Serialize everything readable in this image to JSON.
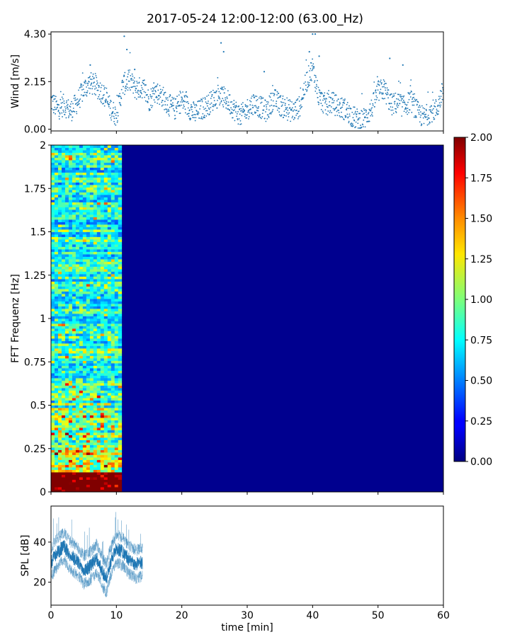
{
  "figure": {
    "title": "2017-05-24 12:00-12:00 (63.00_Hz)"
  },
  "chart_data": [
    {
      "type": "scatter",
      "name": "wind-panel",
      "xlabel": "",
      "ylabel": "Wind [m/s]",
      "xlim": [
        0,
        60
      ],
      "ylim": [
        -0.08,
        4.4
      ],
      "ytick_labels": [
        "0.00",
        "2.15",
        "4.30"
      ],
      "ytick_values": [
        0,
        2.15,
        4.3
      ],
      "xtick_values": [
        0,
        10,
        20,
        30,
        40,
        50,
        60
      ],
      "color": "#1f77b4",
      "profile": [
        [
          0,
          1.3
        ],
        [
          1,
          0.9
        ],
        [
          2,
          1.1
        ],
        [
          3,
          0.8
        ],
        [
          4,
          1.2
        ],
        [
          5,
          1.8
        ],
        [
          6,
          2.1
        ],
        [
          7,
          1.9
        ],
        [
          8,
          1.6
        ],
        [
          9,
          1.0
        ],
        [
          10,
          0.6
        ],
        [
          11,
          2.0
        ],
        [
          12,
          2.2
        ],
        [
          13,
          1.8
        ],
        [
          14,
          1.9
        ],
        [
          15,
          1.3
        ],
        [
          16,
          1.7
        ],
        [
          17,
          1.5
        ],
        [
          18,
          1.1
        ],
        [
          19,
          0.9
        ],
        [
          20,
          1.3
        ],
        [
          21,
          1.0
        ],
        [
          22,
          0.7
        ],
        [
          23,
          0.9
        ],
        [
          24,
          1.1
        ],
        [
          25,
          1.4
        ],
        [
          26,
          1.5
        ],
        [
          27,
          1.3
        ],
        [
          28,
          0.9
        ],
        [
          29,
          0.6
        ],
        [
          30,
          0.9
        ],
        [
          31,
          1.2
        ],
        [
          32,
          1.0
        ],
        [
          33,
          0.8
        ],
        [
          34,
          1.4
        ],
        [
          35,
          1.1
        ],
        [
          36,
          0.9
        ],
        [
          37,
          0.8
        ],
        [
          38,
          1.0
        ],
        [
          39,
          2.1
        ],
        [
          40,
          2.8
        ],
        [
          41,
          1.4
        ],
        [
          42,
          1.1
        ],
        [
          43,
          1.2
        ],
        [
          44,
          1.0
        ],
        [
          45,
          0.9
        ],
        [
          46,
          0.6
        ],
        [
          47,
          0.4
        ],
        [
          48,
          0.5
        ],
        [
          49,
          0.9
        ],
        [
          50,
          1.7
        ],
        [
          51,
          1.8
        ],
        [
          52,
          1.1
        ],
        [
          53,
          1.2
        ],
        [
          54,
          1.0
        ],
        [
          55,
          1.3
        ],
        [
          56,
          0.8
        ],
        [
          57,
          0.5
        ],
        [
          58,
          0.8
        ],
        [
          59,
          0.9
        ],
        [
          60,
          1.8
        ]
      ],
      "peaks": [
        [
          11.2,
          4.2
        ],
        [
          11.6,
          3.6
        ],
        [
          12.8,
          2.7
        ],
        [
          26.0,
          3.9
        ],
        [
          26.4,
          3.5
        ],
        [
          32.6,
          2.6
        ],
        [
          39.5,
          3.5
        ],
        [
          40.0,
          4.3
        ],
        [
          40.4,
          4.3
        ],
        [
          41.0,
          3.3
        ],
        [
          51.8,
          3.2
        ],
        [
          53.8,
          2.9
        ],
        [
          6.0,
          2.9
        ]
      ]
    },
    {
      "type": "heatmap",
      "name": "fft-spectrogram",
      "xlabel": "",
      "ylabel": "FFT Frequenz [Hz]",
      "xlim": [
        0,
        60
      ],
      "ylim": [
        0,
        2
      ],
      "ytick_labels": [
        "0",
        "0.25",
        "0.5",
        "0.75",
        "1",
        "1.25",
        "1.5",
        "1.75",
        "2"
      ],
      "ytick_values": [
        0,
        0.25,
        0.5,
        0.75,
        1,
        1.25,
        1.5,
        1.75,
        2
      ],
      "data_extent_minutes": [
        0,
        10.8
      ],
      "colormap": "jet",
      "colorbar": {
        "vmin": 0,
        "vmax": 2,
        "tick_labels": [
          "0.00",
          "0.25",
          "0.50",
          "0.75",
          "1.00",
          "1.25",
          "1.50",
          "1.75",
          "2.00"
        ],
        "tick_values": [
          0,
          0.25,
          0.5,
          0.75,
          1,
          1.25,
          1.5,
          1.75,
          2
        ],
        "placement": "right"
      }
    },
    {
      "type": "line",
      "name": "spl-panel",
      "xlabel": "time [min]",
      "ylabel": "SPL [dB]",
      "xlim": [
        0,
        60
      ],
      "ylim": [
        8.5,
        58
      ],
      "ytick_labels": [
        "20",
        "40"
      ],
      "ytick_values": [
        20,
        40
      ],
      "xtick_labels": [
        "0",
        "10",
        "20",
        "30",
        "40",
        "50",
        "60"
      ],
      "xtick_values": [
        0,
        10,
        20,
        30,
        40,
        50,
        60
      ],
      "color": "#1f77b4",
      "data_extent_minutes": [
        0,
        14
      ],
      "profile": [
        [
          0,
          30
        ],
        [
          1,
          35
        ],
        [
          2,
          38
        ],
        [
          3,
          33
        ],
        [
          4,
          31
        ],
        [
          5,
          26
        ],
        [
          6,
          28
        ],
        [
          7,
          32
        ],
        [
          8,
          24
        ],
        [
          8.5,
          22
        ],
        [
          9,
          29
        ],
        [
          10,
          37
        ],
        [
          11,
          35
        ],
        [
          12,
          31
        ],
        [
          13,
          29
        ],
        [
          14,
          30
        ]
      ]
    }
  ]
}
